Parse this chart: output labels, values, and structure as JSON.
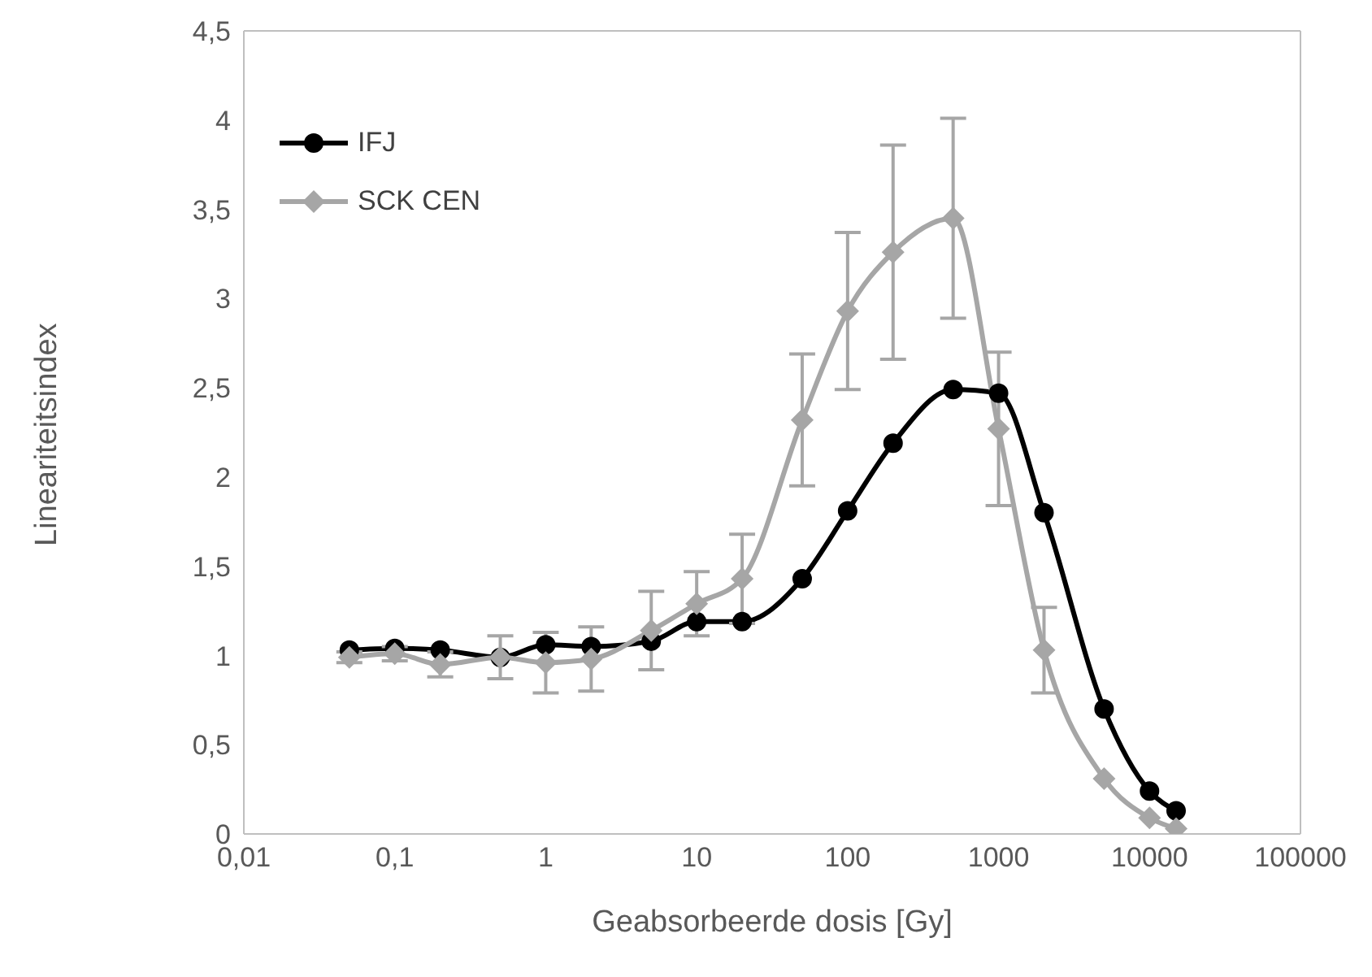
{
  "chart_data": {
    "type": "line",
    "xlabel": "Geabsorbeerde dosis [Gy]",
    "ylabel": "Lineariteitsindex",
    "log": "x",
    "xlim": [
      0.01,
      100000
    ],
    "xticks": [
      {
        "value": 0.01,
        "label": "0,01"
      },
      {
        "value": 0.1,
        "label": "0,1"
      },
      1,
      10,
      100,
      1000,
      10000,
      100000
    ],
    "ylim": [
      0,
      4.5
    ],
    "yticks": [
      0,
      {
        "value": 0.5,
        "label": "0,5"
      },
      1,
      {
        "value": 1.5,
        "label": "1,5"
      },
      2,
      {
        "value": 2.5,
        "label": "2,5"
      },
      3,
      {
        "value": 3.5,
        "label": "3,5"
      },
      4,
      {
        "value": 4.5,
        "label": "4,5"
      }
    ],
    "grid": false,
    "legend": "top left",
    "series": [
      {
        "name": "IFJ",
        "color": "#000000",
        "marker": "circle",
        "x": [
          0.05,
          0.1,
          0.2,
          0.5,
          1,
          2,
          5,
          10,
          20,
          50,
          100,
          200,
          500,
          1000,
          2000,
          5000,
          10000,
          15000
        ],
        "values": [
          1.03,
          1.04,
          1.03,
          0.99,
          1.06,
          1.05,
          1.08,
          1.19,
          1.19,
          1.43,
          1.81,
          2.19,
          2.49,
          2.47,
          1.8,
          0.7,
          0.24,
          0.13
        ]
      },
      {
        "name": "SCK CEN",
        "color": "#a6a6a6",
        "marker": "diamond",
        "x": [
          0.05,
          0.1,
          0.2,
          0.5,
          1,
          2,
          5,
          10,
          20,
          50,
          100,
          200,
          500,
          1000,
          2000,
          5000,
          10000,
          15000
        ],
        "values": [
          0.99,
          1.01,
          0.95,
          0.99,
          0.96,
          0.98,
          1.14,
          1.29,
          1.43,
          2.32,
          2.93,
          3.26,
          3.45,
          2.27,
          1.03,
          0.31,
          0.09,
          0.03
        ],
        "errors": [
          0.03,
          0.04,
          0.07,
          0.12,
          0.17,
          0.18,
          0.22,
          0.18,
          0.25,
          0.37,
          0.44,
          0.6,
          0.56,
          0.43,
          0.24,
          null,
          null,
          null
        ]
      }
    ]
  }
}
